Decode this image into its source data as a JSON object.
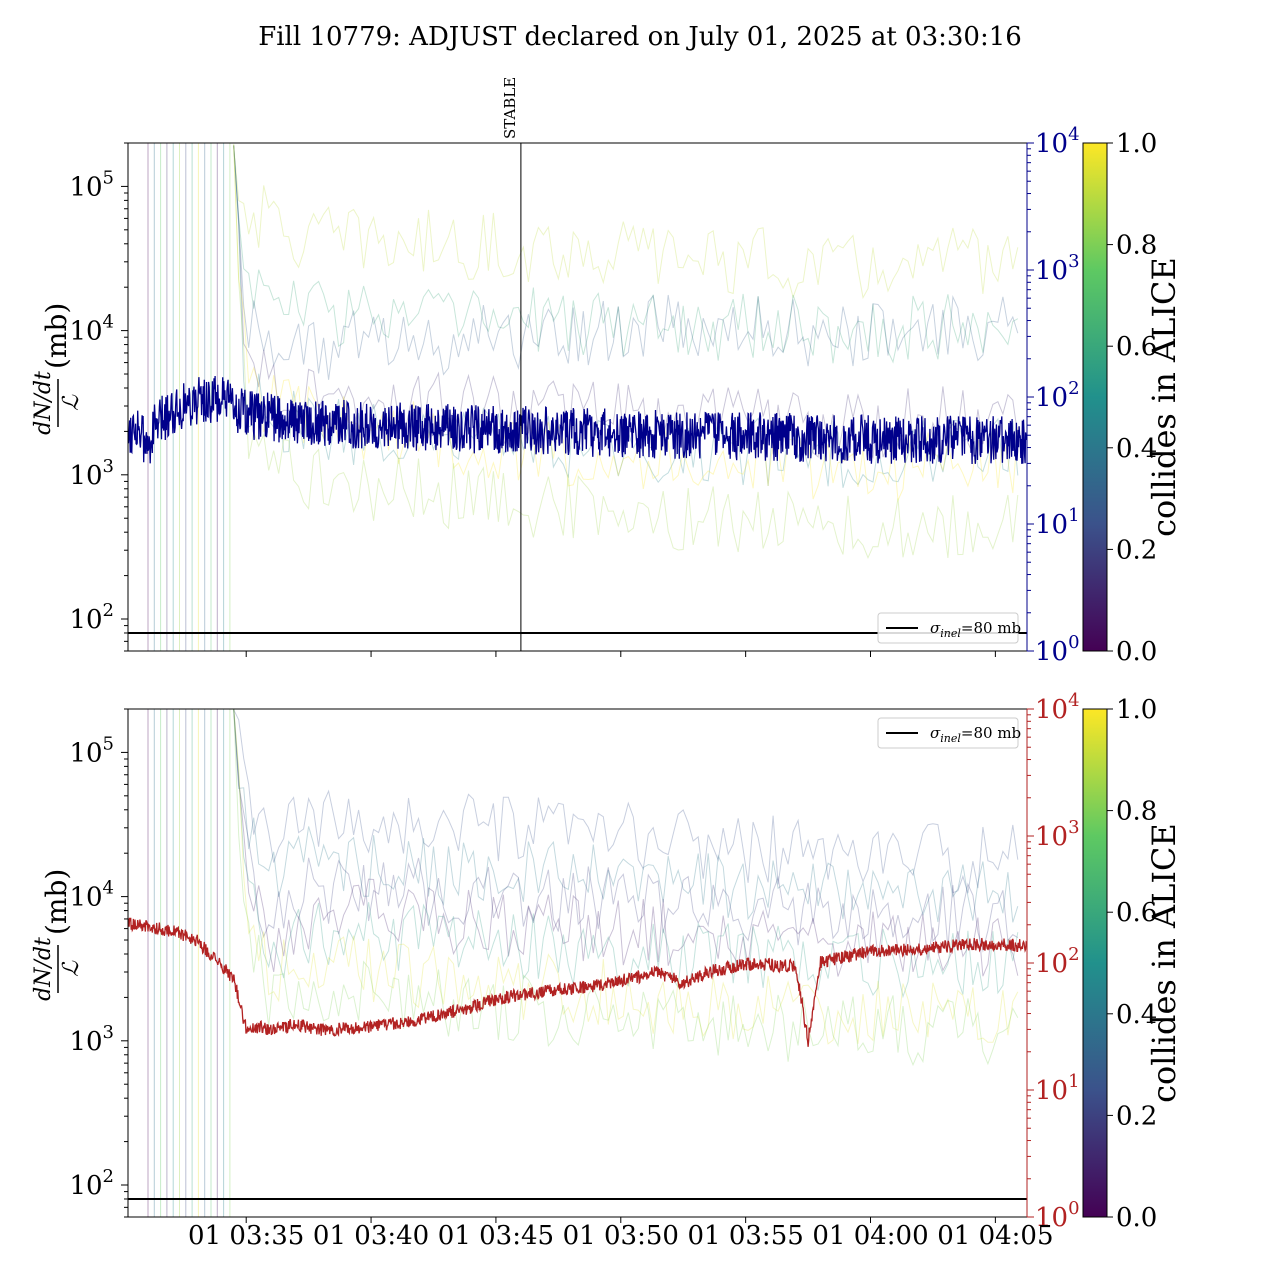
{
  "figure": {
    "title": "Fill 10779: ADJUST declared on July 01, 2025 at 03:30:16"
  },
  "colors": {
    "top_series": "#00008b",
    "bottom_series": "#b22222",
    "top_right_axis": "#00008b",
    "bottom_right_axis": "#b22222",
    "sigma_line": "#000000",
    "viridis": [
      "#440154",
      "#3b528b",
      "#21918c",
      "#5ec962",
      "#fde725"
    ]
  },
  "chart_data": [
    {
      "type": "line",
      "panel": "top",
      "ylabel_num": "dN/dt",
      "ylabel_den": "ℒ",
      "ylabel_unit": "(mb)",
      "yscale": "log",
      "ylim": [
        60,
        200000
      ],
      "yticks": [
        {
          "v": 100,
          "label": "10",
          "exp": "2"
        },
        {
          "v": 1000,
          "label": "10",
          "exp": "3"
        },
        {
          "v": 10000,
          "label": "10",
          "exp": "4"
        },
        {
          "v": 100000,
          "label": "10",
          "exp": "5"
        }
      ],
      "y2scale": "log",
      "y2lim": [
        1,
        10000
      ],
      "y2ticks": [
        {
          "v": 1,
          "label": "10",
          "exp": "0"
        },
        {
          "v": 10,
          "label": "10",
          "exp": "1"
        },
        {
          "v": 100,
          "label": "10",
          "exp": "2"
        },
        {
          "v": 1000,
          "label": "10",
          "exp": "3"
        },
        {
          "v": 10000,
          "label": "10",
          "exp": "4"
        }
      ],
      "xlim": [
        "2025-07-01 03:30:16",
        "2025-07-01 04:06:16"
      ],
      "xticks": [
        "2025-07-01 03:35",
        "2025-07-01 03:40",
        "2025-07-01 03:45",
        "2025-07-01 03:50",
        "2025-07-01 03:55",
        "2025-07-01 04:00",
        "2025-07-01 04:05"
      ],
      "xtick_labels_shown": false,
      "marker": {
        "time": "2025-07-01 03:46:00",
        "label": "STABLE"
      },
      "sigma_inel": {
        "value": 80,
        "label_sym": "σ",
        "label_sub": "inel",
        "label_rest": "=80 mb"
      },
      "legend_loc": "lower right",
      "colorbar": {
        "label": "collides in ALICE",
        "range": [
          0,
          1
        ],
        "ticks": [
          "0.0",
          "0.2",
          "0.4",
          "0.6",
          "0.8",
          "1.0"
        ]
      },
      "series": [
        {
          "role": "main",
          "axis": "left",
          "x": [
            "2025-07-01 03:30:16",
            "2025-07-01 03:30:40",
            "2025-07-01 03:31:00",
            "2025-07-01 03:31:20",
            "2025-07-01 03:32:00",
            "2025-07-01 03:33:00",
            "2025-07-01 03:34:00",
            "2025-07-01 03:35:00",
            "2025-07-01 03:37:00",
            "2025-07-01 03:40:00",
            "2025-07-01 03:45:00",
            "2025-07-01 03:50:00",
            "2025-07-01 03:55:00",
            "2025-07-01 04:00:00",
            "2025-07-01 04:05:00",
            "2025-07-01 04:06:16"
          ],
          "y": [
            2000,
            2200,
            1500,
            2100,
            2800,
            3300,
            3300,
            2600,
            2400,
            2200,
            2050,
            1950,
            1850,
            1750,
            1750,
            1700
          ]
        },
        {
          "role": "bunch",
          "axis": "right",
          "collides": 0.9,
          "x": [
            "2025-07-01 03:34:30",
            "2025-07-01 03:35:00",
            "2025-07-01 03:37:00",
            "2025-07-01 03:40:00",
            "2025-07-01 03:45:00",
            "2025-07-01 03:50:00",
            "2025-07-01 03:55:00",
            "2025-07-01 04:00:00",
            "2025-07-01 04:06:00"
          ],
          "y": [
            8000,
            3000,
            1800,
            1700,
            1500,
            1400,
            1200,
            1000,
            1300
          ]
        },
        {
          "role": "bunch",
          "axis": "right",
          "collides": 0.6,
          "x": [
            "2025-07-01 03:34:30",
            "2025-07-01 03:35:00",
            "2025-07-01 03:37:00",
            "2025-07-01 03:40:00",
            "2025-07-01 03:45:00",
            "2025-07-01 03:50:00",
            "2025-07-01 03:55:00",
            "2025-07-01 04:00:00",
            "2025-07-01 04:06:00"
          ],
          "y": [
            8000,
            800,
            500,
            450,
            400,
            380,
            350,
            330,
            420
          ]
        },
        {
          "role": "bunch",
          "axis": "right",
          "collides": 0.3,
          "x": [
            "2025-07-01 03:34:30",
            "2025-07-01 03:35:00",
            "2025-07-01 03:37:00",
            "2025-07-01 03:40:00",
            "2025-07-01 03:45:00",
            "2025-07-01 03:50:00",
            "2025-07-01 03:55:00",
            "2025-07-01 04:00:00",
            "2025-07-01 04:06:00"
          ],
          "y": [
            8000,
            400,
            250,
            260,
            300,
            330,
            350,
            300,
            380
          ]
        },
        {
          "role": "bunch",
          "axis": "right",
          "collides": 0.15,
          "x": [
            "2025-07-01 03:34:30",
            "2025-07-01 03:35:00",
            "2025-07-01 03:37:00",
            "2025-07-01 03:40:00",
            "2025-07-01 03:45:00",
            "2025-07-01 03:50:00",
            "2025-07-01 03:55:00",
            "2025-07-01 04:00:00",
            "2025-07-01 04:06:00"
          ],
          "y": [
            8000,
            200,
            110,
            90,
            80,
            70,
            65,
            60,
            70
          ]
        },
        {
          "role": "bunch",
          "axis": "right",
          "collides": 0.45,
          "x": [
            "2025-07-01 03:34:30",
            "2025-07-01 03:35:00",
            "2025-07-01 03:37:00",
            "2025-07-01 03:40:00",
            "2025-07-01 03:45:00",
            "2025-07-01 03:50:00",
            "2025-07-01 03:55:00",
            "2025-07-01 04:00:00",
            "2025-07-01 04:06:00"
          ],
          "y": [
            8000,
            100,
            60,
            50,
            45,
            40,
            38,
            35,
            40
          ]
        },
        {
          "role": "bunch",
          "axis": "right",
          "collides": 1.0,
          "x": [
            "2025-07-01 03:34:30",
            "2025-07-01 03:35:00",
            "2025-07-01 03:37:00",
            "2025-07-01 03:40:00",
            "2025-07-01 03:45:00",
            "2025-07-01 03:50:00",
            "2025-07-01 03:55:00",
            "2025-07-01 04:00:00",
            "2025-07-01 04:06:00"
          ],
          "y": [
            8000,
            120,
            70,
            55,
            40,
            35,
            30,
            28,
            32
          ]
        },
        {
          "role": "bunch",
          "axis": "right",
          "collides": 0.85,
          "x": [
            "2025-07-01 03:34:30",
            "2025-07-01 03:35:00",
            "2025-07-01 03:37:00",
            "2025-07-01 03:40:00",
            "2025-07-01 03:45:00",
            "2025-07-01 03:50:00",
            "2025-07-01 03:55:00",
            "2025-07-01 04:00:00",
            "2025-07-01 04:06:00"
          ],
          "y": [
            8000,
            60,
            25,
            20,
            15,
            12,
            10,
            9,
            11
          ]
        }
      ]
    },
    {
      "type": "line",
      "panel": "bottom",
      "ylabel_num": "dN/dt",
      "ylabel_den": "ℒ",
      "ylabel_unit": "(mb)",
      "yscale": "log",
      "ylim": [
        60,
        200000
      ],
      "yticks": [
        {
          "v": 100,
          "label": "10",
          "exp": "2"
        },
        {
          "v": 1000,
          "label": "10",
          "exp": "3"
        },
        {
          "v": 10000,
          "label": "10",
          "exp": "4"
        },
        {
          "v": 100000,
          "label": "10",
          "exp": "5"
        }
      ],
      "y2scale": "log",
      "y2lim": [
        1,
        10000
      ],
      "y2ticks": [
        {
          "v": 1,
          "label": "10",
          "exp": "0"
        },
        {
          "v": 10,
          "label": "10",
          "exp": "1"
        },
        {
          "v": 100,
          "label": "10",
          "exp": "2"
        },
        {
          "v": 1000,
          "label": "10",
          "exp": "3"
        },
        {
          "v": 10000,
          "label": "10",
          "exp": "4"
        }
      ],
      "xlim": [
        "2025-07-01 03:30:16",
        "2025-07-01 04:06:16"
      ],
      "xticks": [
        "2025-07-01 03:35",
        "2025-07-01 03:40",
        "2025-07-01 03:45",
        "2025-07-01 03:50",
        "2025-07-01 03:55",
        "2025-07-01 04:00",
        "2025-07-01 04:05"
      ],
      "xtick_labels": [
        "01 03:35",
        "01 03:40",
        "01 03:45",
        "01 03:50",
        "01 03:55",
        "01 04:00",
        "01 04:05"
      ],
      "sigma_inel": {
        "value": 80,
        "label_sym": "σ",
        "label_sub": "inel",
        "label_rest": "=80 mb"
      },
      "legend_loc": "upper right",
      "colorbar": {
        "label": "collides in ALICE",
        "range": [
          0,
          1
        ],
        "ticks": [
          "0.0",
          "0.2",
          "0.4",
          "0.6",
          "0.8",
          "1.0"
        ]
      },
      "series": [
        {
          "role": "main",
          "axis": "left",
          "x": [
            "2025-07-01 03:30:16",
            "2025-07-01 03:31:00",
            "2025-07-01 03:32:00",
            "2025-07-01 03:33:00",
            "2025-07-01 03:33:40",
            "2025-07-01 03:34:30",
            "2025-07-01 03:35:00",
            "2025-07-01 03:35:30",
            "2025-07-01 03:36:00",
            "2025-07-01 03:37:00",
            "2025-07-01 03:38:00",
            "2025-07-01 03:38:40",
            "2025-07-01 03:40:00",
            "2025-07-01 03:42:00",
            "2025-07-01 03:44:00",
            "2025-07-01 03:45:00",
            "2025-07-01 03:47:00",
            "2025-07-01 03:49:00",
            "2025-07-01 03:50:00",
            "2025-07-01 03:51:30",
            "2025-07-01 03:52:30",
            "2025-07-01 03:53:30",
            "2025-07-01 03:55:00",
            "2025-07-01 03:57:00",
            "2025-07-01 03:57:30",
            "2025-07-01 03:58:00",
            "2025-07-01 04:00:00",
            "2025-07-01 04:02:00",
            "2025-07-01 04:04:00",
            "2025-07-01 04:06:16"
          ],
          "y": [
            6500,
            6200,
            5800,
            5000,
            3800,
            2700,
            1200,
            1250,
            1200,
            1300,
            1200,
            1200,
            1250,
            1400,
            1700,
            1950,
            2200,
            2400,
            2600,
            3000,
            2500,
            3000,
            3400,
            3300,
            1000,
            3500,
            4200,
            4300,
            4700,
            4600
          ]
        },
        {
          "role": "bunch",
          "axis": "right",
          "collides": 0.25,
          "x": [
            "2025-07-01 03:34:30",
            "2025-07-01 03:35:00",
            "2025-07-01 03:36:00",
            "2025-07-01 03:37:00",
            "2025-07-01 03:40:00",
            "2025-07-01 03:45:00",
            "2025-07-01 03:50:00",
            "2025-07-01 03:55:00",
            "2025-07-01 04:00:00",
            "2025-07-01 04:06:00"
          ],
          "y": [
            8000,
            2000,
            900,
            1200,
            1300,
            1100,
            1000,
            800,
            700,
            650
          ]
        },
        {
          "role": "bunch",
          "axis": "right",
          "collides": 0.4,
          "x": [
            "2025-07-01 03:34:30",
            "2025-07-01 03:35:00",
            "2025-07-01 03:36:00",
            "2025-07-01 03:37:00",
            "2025-07-01 03:40:00",
            "2025-07-01 03:45:00",
            "2025-07-01 03:50:00",
            "2025-07-01 03:55:00",
            "2025-07-01 04:00:00",
            "2025-07-01 04:06:00"
          ],
          "y": [
            8000,
            1200,
            500,
            700,
            600,
            500,
            450,
            400,
            350,
            330
          ]
        },
        {
          "role": "bunch",
          "axis": "right",
          "collides": 0.2,
          "x": [
            "2025-07-01 03:34:30",
            "2025-07-01 03:35:00",
            "2025-07-01 03:36:00",
            "2025-07-01 03:37:00",
            "2025-07-01 03:40:00",
            "2025-07-01 03:45:00",
            "2025-07-01 03:50:00",
            "2025-07-01 03:55:00",
            "2025-07-01 04:00:00",
            "2025-07-01 04:06:00"
          ],
          "y": [
            8000,
            800,
            200,
            350,
            400,
            330,
            300,
            260,
            230,
            220
          ]
        },
        {
          "role": "bunch",
          "axis": "right",
          "collides": 0.1,
          "x": [
            "2025-07-01 03:34:30",
            "2025-07-01 03:35:00",
            "2025-07-01 03:36:00",
            "2025-07-01 03:37:00",
            "2025-07-01 03:40:00",
            "2025-07-01 03:45:00",
            "2025-07-01 03:50:00",
            "2025-07-01 03:55:00",
            "2025-07-01 04:00:00",
            "2025-07-01 04:06:00"
          ],
          "y": [
            8000,
            600,
            150,
            220,
            250,
            210,
            180,
            160,
            140,
            130
          ]
        },
        {
          "role": "bunch",
          "axis": "right",
          "collides": 0.55,
          "x": [
            "2025-07-01 03:34:30",
            "2025-07-01 03:35:00",
            "2025-07-01 03:36:00",
            "2025-07-01 03:37:00",
            "2025-07-01 03:40:00",
            "2025-07-01 03:45:00",
            "2025-07-01 03:50:00",
            "2025-07-01 03:55:00",
            "2025-07-01 04:00:00",
            "2025-07-01 04:06:00"
          ],
          "y": [
            8000,
            400,
            120,
            160,
            170,
            140,
            120,
            110,
            100,
            95
          ]
        },
        {
          "role": "bunch",
          "axis": "right",
          "collides": 0.95,
          "x": [
            "2025-07-01 03:34:30",
            "2025-07-01 03:35:00",
            "2025-07-01 03:36:00",
            "2025-07-01 03:37:00",
            "2025-07-01 03:40:00",
            "2025-07-01 03:45:00",
            "2025-07-01 03:50:00",
            "2025-07-01 03:55:00",
            "2025-07-01 04:00:00",
            "2025-07-01 04:06:00"
          ],
          "y": [
            8000,
            300,
            80,
            100,
            90,
            70,
            55,
            45,
            40,
            38
          ]
        },
        {
          "role": "bunch",
          "axis": "right",
          "collides": 0.8,
          "x": [
            "2025-07-01 03:34:30",
            "2025-07-01 03:35:00",
            "2025-07-01 03:36:00",
            "2025-07-01 03:37:00",
            "2025-07-01 03:40:00",
            "2025-07-01 03:45:00",
            "2025-07-01 03:50:00",
            "2025-07-01 03:55:00",
            "2025-07-01 04:00:00",
            "2025-07-01 04:06:00"
          ],
          "y": [
            8000,
            200,
            50,
            60,
            55,
            45,
            38,
            32,
            30,
            28
          ]
        }
      ]
    }
  ]
}
